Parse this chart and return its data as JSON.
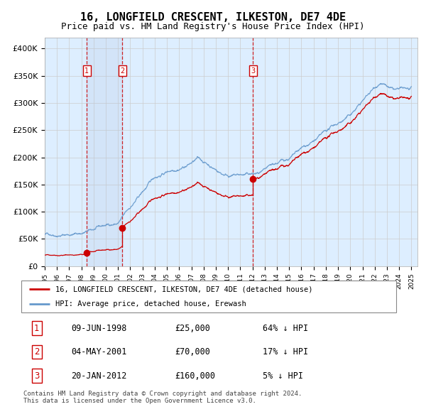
{
  "title": "16, LONGFIELD CRESCENT, ILKESTON, DE7 4DE",
  "subtitle": "Price paid vs. HM Land Registry's House Price Index (HPI)",
  "xlim_start": 1995.0,
  "xlim_end": 2025.5,
  "ylim": [
    0,
    420000
  ],
  "yticks": [
    0,
    50000,
    100000,
    150000,
    200000,
    250000,
    300000,
    350000,
    400000
  ],
  "ytick_labels": [
    "£0",
    "£50K",
    "£100K",
    "£150K",
    "£200K",
    "£250K",
    "£300K",
    "£350K",
    "£400K"
  ],
  "sale_dates": [
    1998.44,
    2001.34,
    2012.05
  ],
  "sale_prices": [
    25000,
    70000,
    160000
  ],
  "sale_labels": [
    "1",
    "2",
    "3"
  ],
  "legend_line1": "16, LONGFIELD CRESCENT, ILKESTON, DE7 4DE (detached house)",
  "legend_line2": "HPI: Average price, detached house, Erewash",
  "table_rows": [
    [
      "1",
      "09-JUN-1998",
      "£25,000",
      "64% ↓ HPI"
    ],
    [
      "2",
      "04-MAY-2001",
      "£70,000",
      "17% ↓ HPI"
    ],
    [
      "3",
      "20-JAN-2012",
      "£160,000",
      "5% ↓ HPI"
    ]
  ],
  "footer": "Contains HM Land Registry data © Crown copyright and database right 2024.\nThis data is licensed under the Open Government Licence v3.0.",
  "line_color_red": "#cc0000",
  "line_color_blue": "#6699cc",
  "bg_fill_color": "#ddeeff",
  "grid_color": "#cccccc",
  "title_fontsize": 11,
  "subtitle_fontsize": 9,
  "tick_fontsize": 8
}
